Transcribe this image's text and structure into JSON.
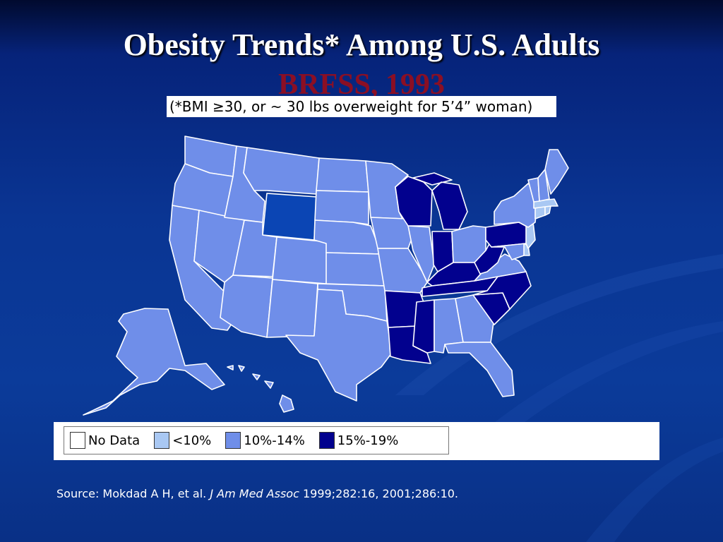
{
  "slide": {
    "title": "Obesity Trends* Among U.S. Adults",
    "subtitle": "BRFSS, 1993",
    "footnote": "(*BMI ≥30, or ~ 30 lbs overweight for 5’4” woman)"
  },
  "legend": [
    {
      "label": "No Data",
      "color": "#ffffff"
    },
    {
      "label": "<10%",
      "color": "#a9c8f3"
    },
    {
      "label": "10%-14%",
      "color": "#6f8ee9"
    },
    {
      "label": "15%-19%",
      "color": "#02018e"
    }
  ],
  "source": {
    "prefix": "Source: Mokdad A H, et al. ",
    "journal": "J Am Med Assoc",
    "suffix": " 1999;282:16, 2001;286:10."
  },
  "colors": {
    "under_10": "#a9c8f3",
    "ten_to_14": "#6f8ee9",
    "fifteen_to_19": "#02018e",
    "highlight_state": "#0b45b4",
    "border": "#ffffff"
  },
  "state_categories": {
    "15-19": [
      "WI",
      "MI",
      "IN",
      "KY",
      "TN",
      "WV",
      "PA",
      "NC",
      "SC",
      "AR",
      "LA",
      "MS"
    ],
    "<10": [
      "MA",
      "CT",
      "RI",
      "NJ",
      "DE"
    ],
    "10-14": [
      "WA",
      "OR",
      "CA",
      "NV",
      "ID",
      "MT",
      "UT",
      "AZ",
      "NM",
      "CO",
      "ND",
      "SD",
      "NE",
      "KS",
      "OK",
      "TX",
      "MN",
      "IA",
      "MO",
      "IL",
      "OH",
      "AL",
      "GA",
      "FL",
      "VA",
      "MD",
      "NY",
      "VT",
      "NH",
      "ME",
      "AK",
      "HI"
    ],
    "shown_darker": [
      "WY"
    ]
  }
}
